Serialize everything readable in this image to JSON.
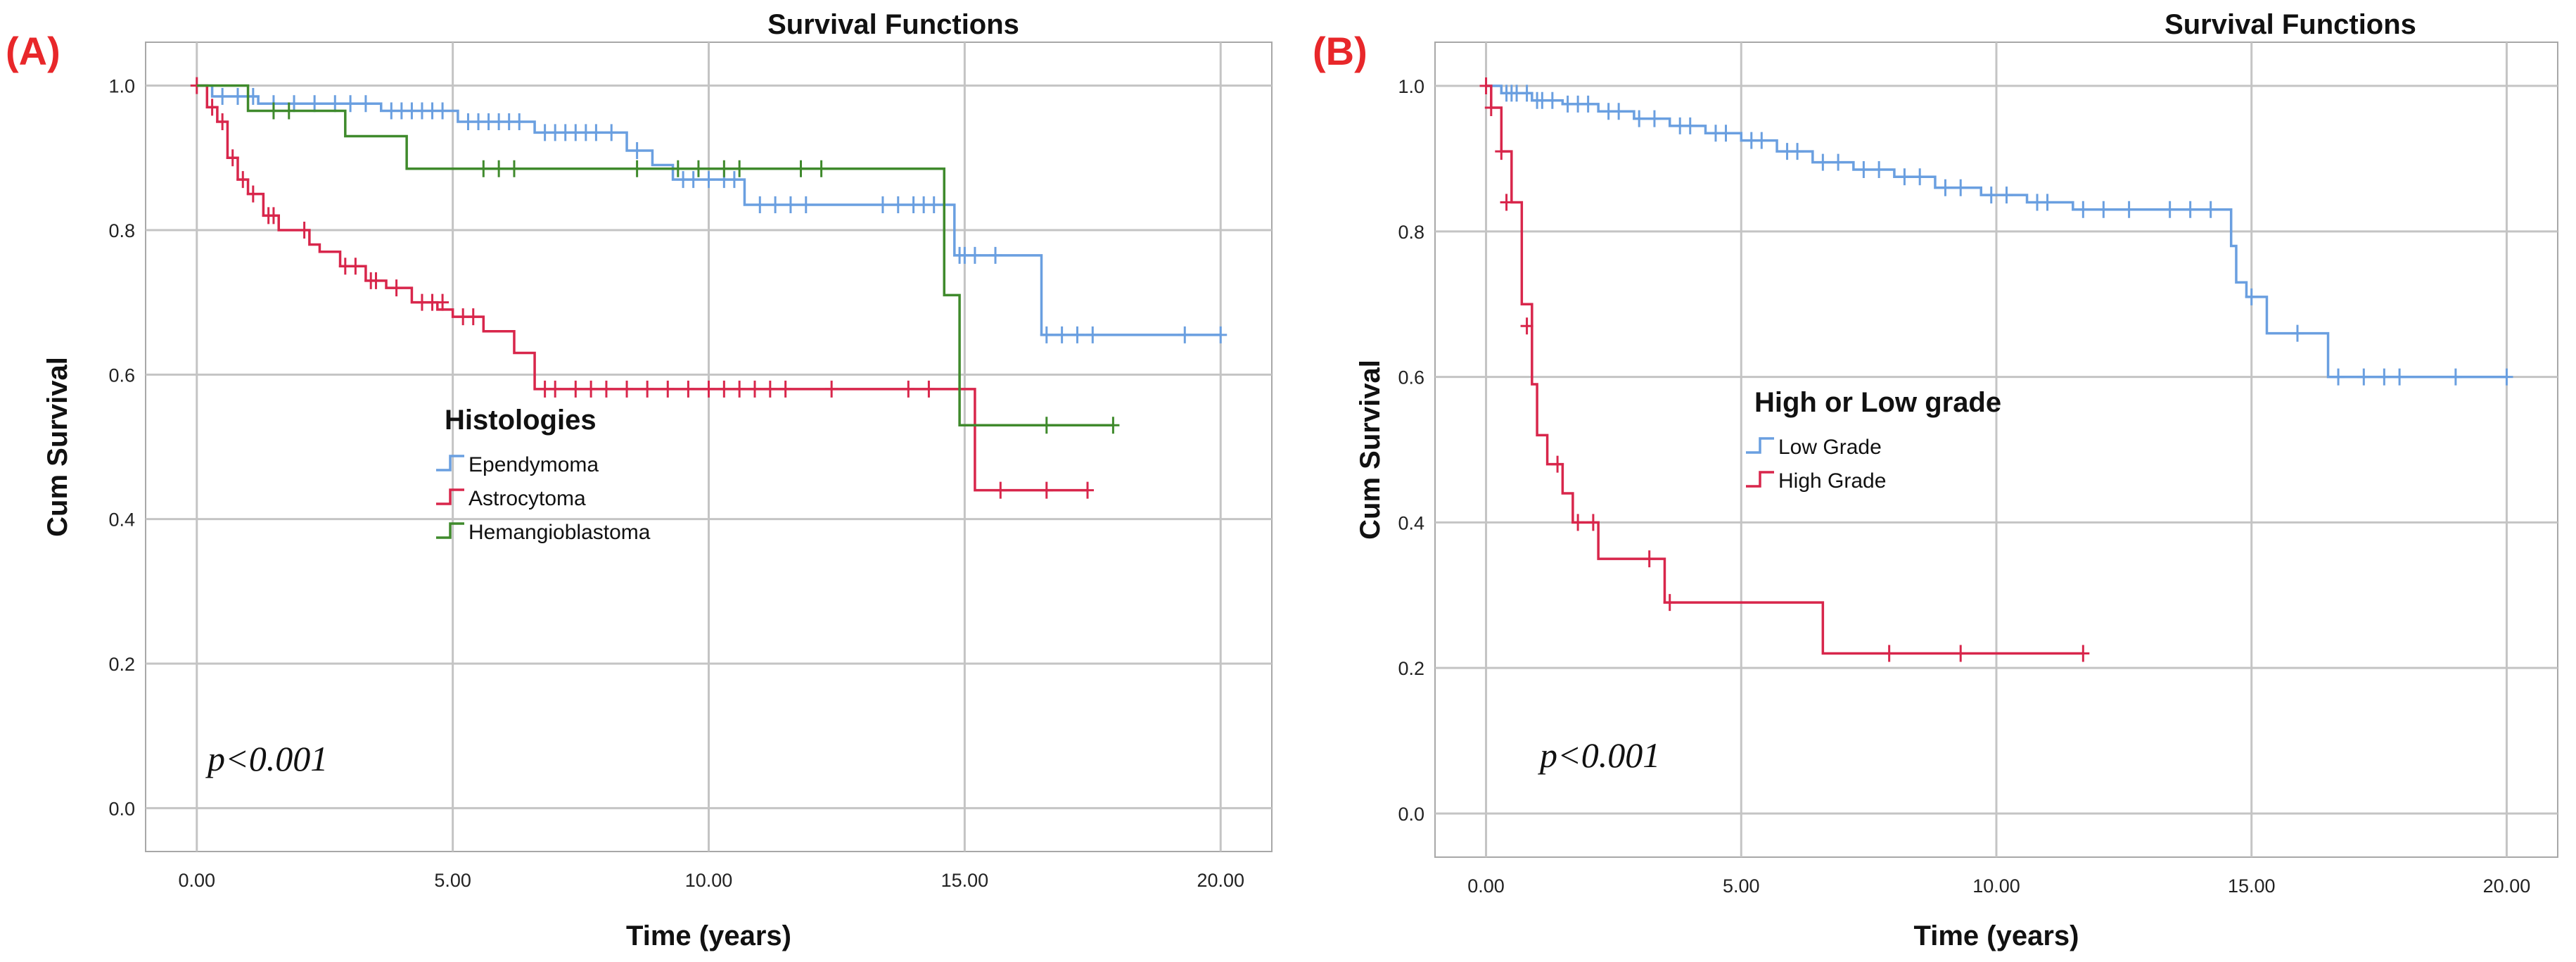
{
  "chart_data": [
    {
      "type": "line",
      "step": true,
      "panel_label": "(A)",
      "title": "Survival Functions",
      "xlabel": "Time (years)",
      "ylabel": "Cum Survival",
      "xlim": [
        -1,
        21
      ],
      "ylim": [
        -0.06,
        1.06
      ],
      "x_ticks": [
        0,
        5,
        10,
        15,
        20
      ],
      "x_tick_labels": [
        "0.00",
        "5.00",
        "10.00",
        "15.00",
        "20.00"
      ],
      "y_ticks": [
        0,
        0.2,
        0.4,
        0.6,
        0.8,
        1.0
      ],
      "y_tick_labels": [
        "0.0",
        "0.2",
        "0.4",
        "0.6",
        "0.8",
        "1.0"
      ],
      "grid": true,
      "legend_title": "Histologies",
      "legend_position": "center",
      "annotation": "p<0.001",
      "series": [
        {
          "name": "Ependymoma",
          "color": "#6a9fe0",
          "x": [
            0,
            0.3,
            1.2,
            3.6,
            5.1,
            6.6,
            8.4,
            8.9,
            9.3,
            10.7,
            14.8,
            16.5,
            20.0
          ],
          "y": [
            1.0,
            0.985,
            0.975,
            0.965,
            0.95,
            0.935,
            0.91,
            0.89,
            0.87,
            0.835,
            0.765,
            0.655,
            0.655
          ],
          "censored": [
            [
              0.5,
              0.985
            ],
            [
              0.8,
              0.985
            ],
            [
              1.1,
              0.985
            ],
            [
              1.5,
              0.975
            ],
            [
              1.9,
              0.975
            ],
            [
              2.3,
              0.975
            ],
            [
              2.7,
              0.975
            ],
            [
              3.0,
              0.975
            ],
            [
              3.3,
              0.975
            ],
            [
              3.8,
              0.965
            ],
            [
              4.0,
              0.965
            ],
            [
              4.2,
              0.965
            ],
            [
              4.4,
              0.965
            ],
            [
              4.6,
              0.965
            ],
            [
              4.8,
              0.965
            ],
            [
              5.3,
              0.95
            ],
            [
              5.5,
              0.95
            ],
            [
              5.7,
              0.95
            ],
            [
              5.9,
              0.95
            ],
            [
              6.1,
              0.95
            ],
            [
              6.3,
              0.95
            ],
            [
              6.8,
              0.935
            ],
            [
              7.0,
              0.935
            ],
            [
              7.2,
              0.935
            ],
            [
              7.4,
              0.935
            ],
            [
              7.6,
              0.935
            ],
            [
              7.8,
              0.935
            ],
            [
              8.1,
              0.935
            ],
            [
              8.6,
              0.91
            ],
            [
              9.5,
              0.87
            ],
            [
              9.7,
              0.87
            ],
            [
              10.0,
              0.87
            ],
            [
              10.3,
              0.87
            ],
            [
              10.5,
              0.87
            ],
            [
              11.0,
              0.835
            ],
            [
              11.3,
              0.835
            ],
            [
              11.6,
              0.835
            ],
            [
              11.9,
              0.835
            ],
            [
              13.4,
              0.835
            ],
            [
              13.7,
              0.835
            ],
            [
              14.0,
              0.835
            ],
            [
              14.2,
              0.835
            ],
            [
              14.4,
              0.835
            ],
            [
              14.9,
              0.765
            ],
            [
              15.0,
              0.765
            ],
            [
              15.2,
              0.765
            ],
            [
              15.6,
              0.765
            ],
            [
              16.6,
              0.655
            ],
            [
              16.9,
              0.655
            ],
            [
              17.2,
              0.655
            ],
            [
              17.5,
              0.655
            ],
            [
              19.3,
              0.655
            ],
            [
              20.0,
              0.655
            ]
          ]
        },
        {
          "name": "Astrocytoma",
          "color": "#d8264b",
          "x": [
            0,
            0.2,
            0.4,
            0.6,
            0.8,
            1.0,
            1.3,
            1.6,
            2.2,
            2.4,
            2.8,
            3.3,
            3.7,
            4.2,
            4.7,
            5.0,
            5.6,
            6.2,
            6.6,
            15.2,
            17.4
          ],
          "y": [
            1.0,
            0.97,
            0.95,
            0.9,
            0.87,
            0.85,
            0.82,
            0.8,
            0.78,
            0.77,
            0.75,
            0.73,
            0.72,
            0.7,
            0.69,
            0.68,
            0.66,
            0.63,
            0.58,
            0.44,
            0.44
          ],
          "censored": [
            [
              0.0,
              1.0
            ],
            [
              0.3,
              0.97
            ],
            [
              0.5,
              0.95
            ],
            [
              0.7,
              0.9
            ],
            [
              0.9,
              0.87
            ],
            [
              1.1,
              0.85
            ],
            [
              1.4,
              0.82
            ],
            [
              1.5,
              0.82
            ],
            [
              2.1,
              0.8
            ],
            [
              2.9,
              0.75
            ],
            [
              3.1,
              0.75
            ],
            [
              3.4,
              0.73
            ],
            [
              3.5,
              0.73
            ],
            [
              3.9,
              0.72
            ],
            [
              4.4,
              0.7
            ],
            [
              4.6,
              0.7
            ],
            [
              4.8,
              0.7
            ],
            [
              5.2,
              0.68
            ],
            [
              5.4,
              0.68
            ],
            [
              6.8,
              0.58
            ],
            [
              7.0,
              0.58
            ],
            [
              7.4,
              0.58
            ],
            [
              7.7,
              0.58
            ],
            [
              8.0,
              0.58
            ],
            [
              8.4,
              0.58
            ],
            [
              8.8,
              0.58
            ],
            [
              9.2,
              0.58
            ],
            [
              9.6,
              0.58
            ],
            [
              10.0,
              0.58
            ],
            [
              10.3,
              0.58
            ],
            [
              10.6,
              0.58
            ],
            [
              10.9,
              0.58
            ],
            [
              11.2,
              0.58
            ],
            [
              11.5,
              0.58
            ],
            [
              12.4,
              0.58
            ],
            [
              13.9,
              0.58
            ],
            [
              14.3,
              0.58
            ],
            [
              15.7,
              0.44
            ],
            [
              16.6,
              0.44
            ],
            [
              17.4,
              0.44
            ]
          ]
        },
        {
          "name": "Hemangioblastoma",
          "color": "#3f8a2c",
          "x": [
            0,
            1.0,
            2.9,
            4.1,
            14.6,
            14.9,
            17.9
          ],
          "y": [
            1.0,
            0.965,
            0.93,
            0.885,
            0.71,
            0.53,
            0.53
          ],
          "censored": [
            [
              1.5,
              0.965
            ],
            [
              1.8,
              0.965
            ],
            [
              5.6,
              0.885
            ],
            [
              5.9,
              0.885
            ],
            [
              6.2,
              0.885
            ],
            [
              8.6,
              0.885
            ],
            [
              9.4,
              0.885
            ],
            [
              9.8,
              0.885
            ],
            [
              10.3,
              0.885
            ],
            [
              10.6,
              0.885
            ],
            [
              11.8,
              0.885
            ],
            [
              12.2,
              0.885
            ],
            [
              16.6,
              0.53
            ],
            [
              17.9,
              0.53
            ]
          ]
        }
      ]
    },
    {
      "type": "line",
      "step": true,
      "panel_label": "(B)",
      "title": "Survival Functions",
      "xlabel": "Time (years)",
      "ylabel": "Cum Survival",
      "xlim": [
        -1,
        21
      ],
      "ylim": [
        -0.06,
        1.06
      ],
      "x_ticks": [
        0,
        5,
        10,
        15,
        20
      ],
      "x_tick_labels": [
        "0.00",
        "5.00",
        "10.00",
        "15.00",
        "20.00"
      ],
      "y_ticks": [
        0,
        0.2,
        0.4,
        0.6,
        0.8,
        1.0
      ],
      "y_tick_labels": [
        "0.0",
        "0.2",
        "0.4",
        "0.6",
        "0.8",
        "1.0"
      ],
      "grid": true,
      "legend_title": "High or Low grade",
      "legend_position": "center",
      "annotation": "p<0.001",
      "series": [
        {
          "name": "Low Grade",
          "color": "#6a9fe0",
          "x": [
            0,
            0.3,
            0.9,
            1.5,
            2.2,
            2.9,
            3.6,
            4.3,
            5.0,
            5.7,
            6.4,
            7.2,
            8.0,
            8.8,
            9.7,
            10.6,
            11.5,
            14.6,
            14.7,
            14.9,
            15.3,
            16.5,
            20.0
          ],
          "y": [
            1.0,
            0.99,
            0.98,
            0.975,
            0.965,
            0.955,
            0.945,
            0.935,
            0.925,
            0.91,
            0.895,
            0.885,
            0.875,
            0.86,
            0.85,
            0.84,
            0.83,
            0.78,
            0.73,
            0.71,
            0.66,
            0.6,
            0.6
          ],
          "censored": [
            [
              0.4,
              0.99
            ],
            [
              0.5,
              0.99
            ],
            [
              0.6,
              0.99
            ],
            [
              0.8,
              0.99
            ],
            [
              1.0,
              0.98
            ],
            [
              1.1,
              0.98
            ],
            [
              1.3,
              0.98
            ],
            [
              1.6,
              0.975
            ],
            [
              1.8,
              0.975
            ],
            [
              2.0,
              0.975
            ],
            [
              2.4,
              0.965
            ],
            [
              2.6,
              0.965
            ],
            [
              3.0,
              0.955
            ],
            [
              3.3,
              0.955
            ],
            [
              3.8,
              0.945
            ],
            [
              4.0,
              0.945
            ],
            [
              4.5,
              0.935
            ],
            [
              4.7,
              0.935
            ],
            [
              5.2,
              0.925
            ],
            [
              5.4,
              0.925
            ],
            [
              5.9,
              0.91
            ],
            [
              6.1,
              0.91
            ],
            [
              6.6,
              0.895
            ],
            [
              6.9,
              0.895
            ],
            [
              7.4,
              0.885
            ],
            [
              7.7,
              0.885
            ],
            [
              8.2,
              0.875
            ],
            [
              8.5,
              0.875
            ],
            [
              9.0,
              0.86
            ],
            [
              9.3,
              0.86
            ],
            [
              9.9,
              0.85
            ],
            [
              10.2,
              0.85
            ],
            [
              10.8,
              0.84
            ],
            [
              11.0,
              0.84
            ],
            [
              11.7,
              0.83
            ],
            [
              12.1,
              0.83
            ],
            [
              12.6,
              0.83
            ],
            [
              13.4,
              0.83
            ],
            [
              13.8,
              0.83
            ],
            [
              14.2,
              0.83
            ],
            [
              15.0,
              0.71
            ],
            [
              15.9,
              0.66
            ],
            [
              16.7,
              0.6
            ],
            [
              17.2,
              0.6
            ],
            [
              17.6,
              0.6
            ],
            [
              17.9,
              0.6
            ],
            [
              19.0,
              0.6
            ],
            [
              20.0,
              0.6
            ]
          ]
        },
        {
          "name": "High Grade",
          "color": "#d8264b",
          "x": [
            0,
            0.1,
            0.3,
            0.5,
            0.7,
            0.9,
            1.0,
            1.2,
            1.5,
            1.7,
            2.2,
            3.5,
            6.6,
            11.7
          ],
          "y": [
            1.0,
            0.97,
            0.91,
            0.84,
            0.7,
            0.59,
            0.52,
            0.48,
            0.44,
            0.4,
            0.35,
            0.29,
            0.22,
            0.22
          ],
          "censored": [
            [
              0.0,
              1.0
            ],
            [
              0.1,
              0.97
            ],
            [
              0.3,
              0.91
            ],
            [
              0.4,
              0.84
            ],
            [
              0.8,
              0.67
            ],
            [
              1.4,
              0.48
            ],
            [
              1.8,
              0.4
            ],
            [
              2.1,
              0.4
            ],
            [
              3.2,
              0.35
            ],
            [
              3.6,
              0.29
            ],
            [
              7.9,
              0.22
            ],
            [
              9.3,
              0.22
            ],
            [
              11.7,
              0.22
            ]
          ]
        }
      ]
    }
  ]
}
